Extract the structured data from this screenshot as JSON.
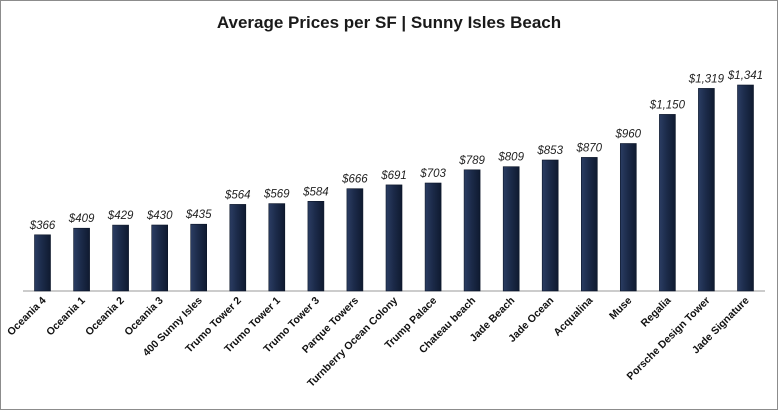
{
  "chart_data": {
    "type": "bar",
    "title": "Average Prices per SF | Sunny Isles Beach",
    "xlabel": "",
    "ylabel": "",
    "ylim": [
      0,
      1400
    ],
    "grid": false,
    "legend": "none",
    "value_label_format": "$#,###",
    "bar_color": "#1c2b4a",
    "categories": [
      "Oceania 4",
      "Oceania 1",
      "Oceania 2",
      "Oceania 3",
      "400 Sunny Isles",
      "Trumo Tower 2",
      "Trumo Tower 1",
      "Trumo Tower 3",
      "Parque Towers",
      "Turnberry Ocean Colony",
      "Trump Palace",
      "Chateau beach",
      "Jade Beach",
      "Jade Ocean",
      "Acqualina",
      "Muse",
      "Regalia",
      "Porsche Design Tower",
      "Jade Signature"
    ],
    "values": [
      366,
      409,
      429,
      430,
      435,
      564,
      569,
      584,
      666,
      691,
      703,
      789,
      809,
      853,
      870,
      960,
      1150,
      1319,
      1341
    ],
    "value_labels": [
      "$366",
      "$409",
      "$429",
      "$430",
      "$435",
      "$564",
      "$569",
      "$584",
      "$666",
      "$691",
      "$703",
      "$789",
      "$809",
      "$853",
      "$870",
      "$960",
      "$1,150",
      "$1,319",
      "$1,341"
    ]
  }
}
